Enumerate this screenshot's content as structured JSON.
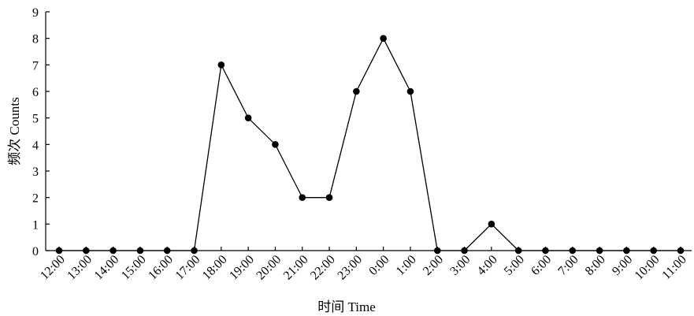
{
  "chart_data": {
    "type": "line",
    "title": "",
    "xlabel": "时间 Time",
    "ylabel": "频次 Counts",
    "ylim": [
      0,
      9
    ],
    "yticks": [
      0,
      1,
      2,
      3,
      4,
      5,
      6,
      7,
      8,
      9
    ],
    "grid": false,
    "legend": "none",
    "categories": [
      "12:00",
      "13:00",
      "14:00",
      "15:00",
      "16:00",
      "17:00",
      "18:00",
      "19:00",
      "20:00",
      "21:00",
      "22:00",
      "23:00",
      "0:00",
      "1:00",
      "2:00",
      "3:00",
      "4:00",
      "5:00",
      "6:00",
      "7:00",
      "8:00",
      "9:00",
      "10:00",
      "11:00"
    ],
    "series": [
      {
        "values": [
          0,
          0,
          0,
          0,
          0,
          0,
          7,
          5,
          4,
          2,
          2,
          6,
          8,
          6,
          0,
          0,
          1,
          0,
          0,
          0,
          0,
          0,
          0,
          0
        ]
      }
    ],
    "colors": {
      "line": "#000000",
      "marker": "#000000",
      "axis": "#000000"
    }
  }
}
